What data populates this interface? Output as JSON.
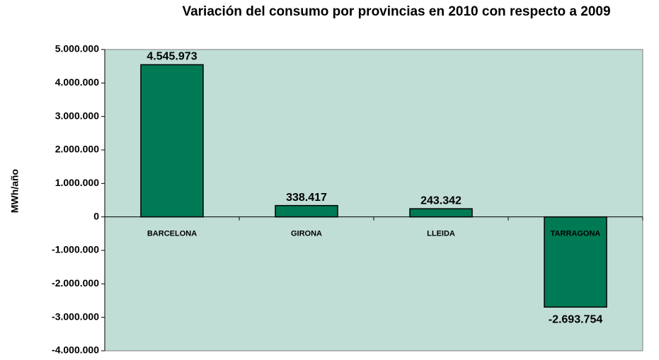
{
  "chart_data": {
    "type": "bar",
    "title": "Variación del consumo por provincias en 2010 con respecto a 2009",
    "y_label": "MWh/año",
    "categories": [
      "BARCELONA",
      "GIRONA",
      "LLEIDA",
      "TARRAGONA"
    ],
    "values": [
      4545973,
      338417,
      243342,
      -2693754
    ],
    "value_labels": [
      "4.545.973",
      "338.417",
      "243.342",
      "-2.693.754"
    ],
    "color": "#007a55",
    "plot_background": "#c0ddd6",
    "ylim": [
      -4000000,
      5000000
    ],
    "yticks": [
      {
        "value": -4000000,
        "label": "-4.000.000"
      },
      {
        "value": -3000000,
        "label": "-3.000.000"
      },
      {
        "value": -2000000,
        "label": "-2.000.000"
      },
      {
        "value": -1000000,
        "label": "-1.000.000"
      },
      0,
      {
        "value": 1000000,
        "label": "1.000.000"
      },
      {
        "value": 2000000,
        "label": "2.000.000"
      },
      {
        "value": 3000000,
        "label": "3.000.000"
      },
      {
        "value": 4000000,
        "label": "4.000.000"
      },
      {
        "value": 5000000,
        "label": "5.000.000"
      }
    ],
    "grid": false
  }
}
